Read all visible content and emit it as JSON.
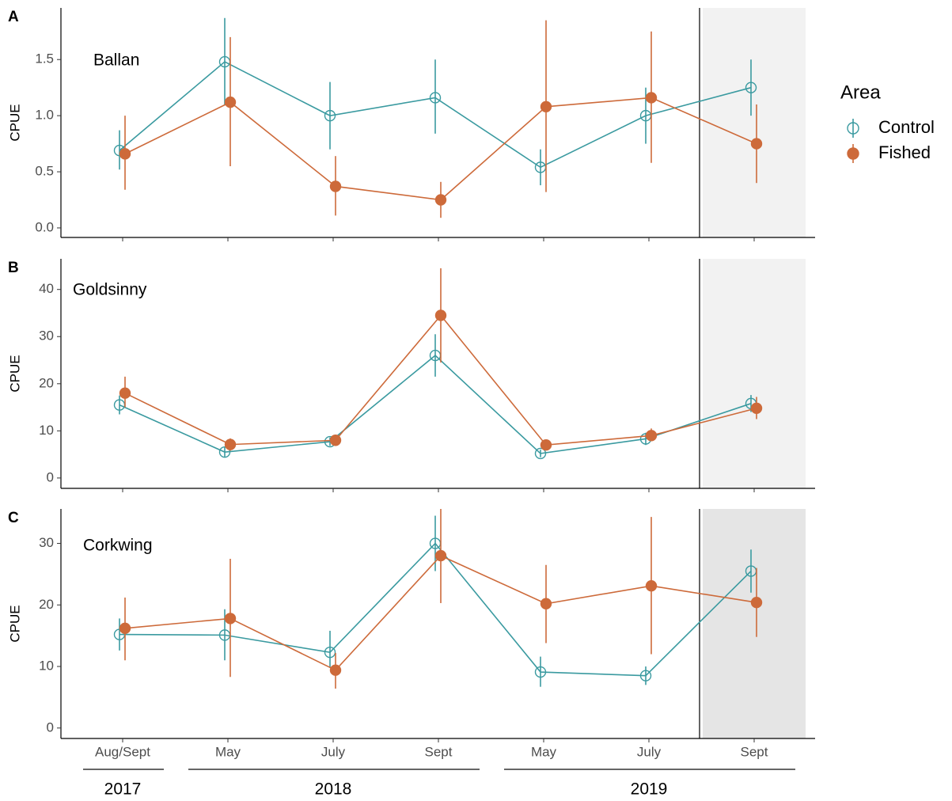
{
  "chart_data": [
    {
      "type": "line",
      "panel": "A",
      "title": "Ballan",
      "ylabel": "CPUE",
      "ylim": [
        -0.085,
        1.96
      ],
      "yticks": [
        {
          "value": 0,
          "label": "0.0"
        },
        {
          "value": 0.5,
          "label": "0.5"
        },
        {
          "value": 1,
          "label": "1.0"
        },
        {
          "value": 1.5,
          "label": "1.5"
        }
      ],
      "highlight_color": "#f2f2f2",
      "legend_title": "Area",
      "series": [
        {
          "name": "Control",
          "color": "#3a9aa0",
          "marker": "open",
          "values": [
            0.69,
            1.48,
            1.0,
            1.16,
            0.54,
            1.0,
            1.25
          ],
          "lower": [
            0.52,
            1.1,
            0.7,
            0.84,
            0.38,
            0.75,
            1.0
          ],
          "upper": [
            0.87,
            1.87,
            1.3,
            1.5,
            0.7,
            1.25,
            1.5
          ]
        },
        {
          "name": "Fished",
          "color": "#cd6a3a",
          "marker": "filled",
          "values": [
            0.66,
            1.12,
            0.37,
            0.25,
            1.08,
            1.16,
            0.75
          ],
          "lower": [
            0.34,
            0.55,
            0.11,
            0.09,
            0.32,
            0.58,
            0.4
          ],
          "upper": [
            1.0,
            1.7,
            0.64,
            0.41,
            1.85,
            1.75,
            1.1
          ]
        }
      ]
    },
    {
      "type": "line",
      "panel": "B",
      "title": "Goldsinny",
      "ylabel": "CPUE",
      "ylim": [
        -2.2,
        46.5
      ],
      "yticks": [
        0,
        10,
        20,
        30,
        40
      ],
      "highlight_color": "#f2f2f2",
      "series": [
        {
          "name": "Control",
          "color": "#3a9aa0",
          "marker": "open",
          "values": [
            15.5,
            5.5,
            7.7,
            26,
            5.2,
            8.3,
            15.8
          ],
          "lower": [
            13.5,
            4.5,
            6.8,
            21.5,
            4.4,
            7,
            14
          ],
          "upper": [
            17.5,
            6.5,
            8.6,
            30.5,
            6,
            9.6,
            17.6
          ]
        },
        {
          "name": "Fished",
          "color": "#cd6a3a",
          "marker": "filled",
          "values": [
            18,
            7.1,
            8.0,
            34.5,
            7.0,
            9.0,
            14.8
          ],
          "lower": [
            15,
            5.8,
            6.8,
            24.5,
            6,
            7.8,
            12.5
          ],
          "upper": [
            21.5,
            8.4,
            9.2,
            44.5,
            8,
            10.5,
            17.2
          ]
        }
      ]
    },
    {
      "type": "line",
      "panel": "C",
      "title": "Corkwing",
      "ylabel": "CPUE",
      "ylim": [
        -1.7,
        35.6
      ],
      "yticks": [
        0,
        10,
        20,
        30
      ],
      "highlight_color": "#e5e5e5",
      "categories": [
        "Aug/Sept",
        "May",
        "July",
        "Sept",
        "May",
        "July",
        "Sept"
      ],
      "groups": [
        {
          "label": "2017",
          "span": [
            0,
            0
          ]
        },
        {
          "label": "2018",
          "span": [
            1,
            3
          ]
        },
        {
          "label": "2019",
          "span": [
            4,
            6
          ]
        }
      ],
      "series": [
        {
          "name": "Control",
          "color": "#3a9aa0",
          "marker": "open",
          "values": [
            15.2,
            15.1,
            12.3,
            30,
            9.1,
            8.5,
            25.5
          ],
          "lower": [
            12.6,
            11,
            9.8,
            25.5,
            6.7,
            7,
            22
          ],
          "upper": [
            17.8,
            19.3,
            15.8,
            34.5,
            11.6,
            10,
            29
          ]
        },
        {
          "name": "Fished",
          "color": "#cd6a3a",
          "marker": "filled",
          "values": [
            16.2,
            17.8,
            9.4,
            28,
            20.2,
            23.1,
            20.4
          ],
          "lower": [
            11,
            8.3,
            6.4,
            20.3,
            13.8,
            12,
            14.8
          ],
          "upper": [
            21.2,
            27.5,
            12.2,
            36,
            26.5,
            34.3,
            26
          ]
        }
      ]
    }
  ]
}
